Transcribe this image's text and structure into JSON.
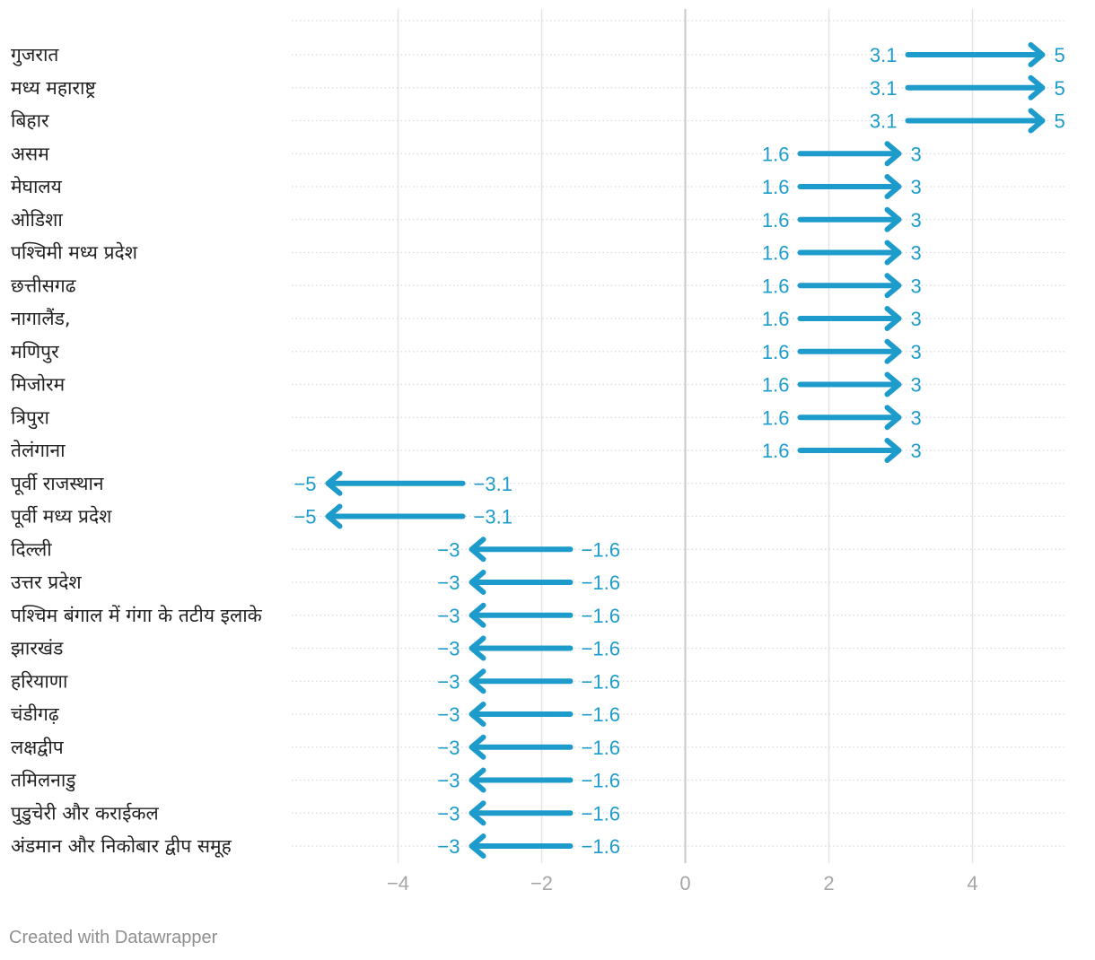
{
  "chart_data": {
    "type": "arrow",
    "xlim": [
      -5.4,
      5.4
    ],
    "xticks": [
      -4,
      -2,
      0,
      2,
      4
    ],
    "xtick_labels": [
      "−4",
      "−2",
      "0",
      "2",
      "4"
    ],
    "grid": "vertical",
    "arrow_color": "#1d9ccc",
    "rows": [
      {
        "label": "गुजरात",
        "start": 3.1,
        "end": 5,
        "start_label": "3.1",
        "end_label": "5"
      },
      {
        "label": "मध्य महाराष्ट्र",
        "start": 3.1,
        "end": 5,
        "start_label": "3.1",
        "end_label": "5"
      },
      {
        "label": "बिहार",
        "start": 3.1,
        "end": 5,
        "start_label": "3.1",
        "end_label": "5"
      },
      {
        "label": "असम",
        "start": 1.6,
        "end": 3,
        "start_label": "1.6",
        "end_label": "3"
      },
      {
        "label": "मेघालय",
        "start": 1.6,
        "end": 3,
        "start_label": "1.6",
        "end_label": "3"
      },
      {
        "label": "ओडिशा",
        "start": 1.6,
        "end": 3,
        "start_label": "1.6",
        "end_label": "3"
      },
      {
        "label": "पश्चिमी मध्य प्रदेश",
        "start": 1.6,
        "end": 3,
        "start_label": "1.6",
        "end_label": "3"
      },
      {
        "label": "छत्तीसगढ",
        "start": 1.6,
        "end": 3,
        "start_label": "1.6",
        "end_label": "3"
      },
      {
        "label": "नागालैंड,",
        "start": 1.6,
        "end": 3,
        "start_label": "1.6",
        "end_label": "3"
      },
      {
        "label": "मणिपुर",
        "start": 1.6,
        "end": 3,
        "start_label": "1.6",
        "end_label": "3"
      },
      {
        "label": "मिजोरम",
        "start": 1.6,
        "end": 3,
        "start_label": "1.6",
        "end_label": "3"
      },
      {
        "label": "त्रिपुरा",
        "start": 1.6,
        "end": 3,
        "start_label": "1.6",
        "end_label": "3"
      },
      {
        "label": "तेलंगाना",
        "start": 1.6,
        "end": 3,
        "start_label": "1.6",
        "end_label": "3"
      },
      {
        "label": "पूर्वी राजस्थान",
        "start": -3.1,
        "end": -5,
        "start_label": "−3.1",
        "end_label": "−5"
      },
      {
        "label": "पूर्वी मध्य प्रदेश",
        "start": -3.1,
        "end": -5,
        "start_label": "−3.1",
        "end_label": "−5"
      },
      {
        "label": "दिल्ली",
        "start": -1.6,
        "end": -3,
        "start_label": "−1.6",
        "end_label": "−3"
      },
      {
        "label": "उत्तर प्रदेश",
        "start": -1.6,
        "end": -3,
        "start_label": "−1.6",
        "end_label": "−3"
      },
      {
        "label": "पश्चिम बंगाल में गंगा के तटीय इलाके",
        "start": -1.6,
        "end": -3,
        "start_label": "−1.6",
        "end_label": "−3"
      },
      {
        "label": "झारखंड",
        "start": -1.6,
        "end": -3,
        "start_label": "−1.6",
        "end_label": "−3"
      },
      {
        "label": "हरियाणा",
        "start": -1.6,
        "end": -3,
        "start_label": "−1.6",
        "end_label": "−3"
      },
      {
        "label": "चंडीगढ़",
        "start": -1.6,
        "end": -3,
        "start_label": "−1.6",
        "end_label": "−3"
      },
      {
        "label": "लक्षद्वीप",
        "start": -1.6,
        "end": -3,
        "start_label": "−1.6",
        "end_label": "−3"
      },
      {
        "label": "तमिलनाडु",
        "start": -1.6,
        "end": -3,
        "start_label": "−1.6",
        "end_label": "−3"
      },
      {
        "label": "पुडुचेरी और कराईकल",
        "start": -1.6,
        "end": -3,
        "start_label": "−1.6",
        "end_label": "−3"
      },
      {
        "label": "अंडमान और निकोबार द्वीप समूह",
        "start": -1.6,
        "end": -3,
        "start_label": "−1.6",
        "end_label": "−3"
      }
    ]
  },
  "footer": {
    "credit": "Created with Datawrapper"
  }
}
